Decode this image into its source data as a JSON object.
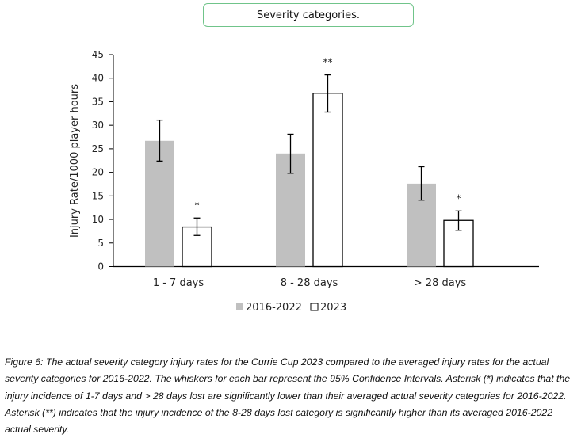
{
  "chart_data": {
    "type": "bar",
    "title": "Severity categories.",
    "xlabel": "",
    "ylabel": "Injury Rate/1000 player hours",
    "ylim": [
      0,
      45
    ],
    "yticks": [
      0,
      5,
      10,
      15,
      20,
      25,
      30,
      35,
      40,
      45
    ],
    "categories": [
      "1 - 7 days",
      "8 - 28 days",
      "> 28 days"
    ],
    "series": [
      {
        "name": "2016-2022",
        "color": "#c0c0c0",
        "values": [
          26.7,
          24.0,
          17.6
        ],
        "ci_low": [
          22.4,
          19.8,
          14.1
        ],
        "ci_high": [
          31.1,
          28.1,
          21.2
        ],
        "annotations": [
          "",
          "",
          ""
        ]
      },
      {
        "name": "2023",
        "color": "#ffffff",
        "values": [
          8.4,
          36.8,
          9.8
        ],
        "ci_low": [
          6.6,
          32.8,
          7.7
        ],
        "ci_high": [
          10.3,
          40.7,
          11.8
        ],
        "annotations": [
          "*",
          "**",
          "*"
        ]
      }
    ],
    "legend": "bottom-center",
    "grid": false
  },
  "caption": "Figure 6: The actual severity category injury rates for the Currie Cup 2023 compared to the averaged injury rates for the actual severity categories for 2016-2022. The whiskers for each bar represent the 95% Confidence Intervals. Asterisk (*) indicates that the injury incidence of 1-7 days and > 28 days lost are significantly lower than their averaged actual severity categories for 2016-2022. Asterisk (**) indicates that the injury incidence of the 8-28 days lost category is significantly higher than its averaged 2016-2022 actual severity."
}
